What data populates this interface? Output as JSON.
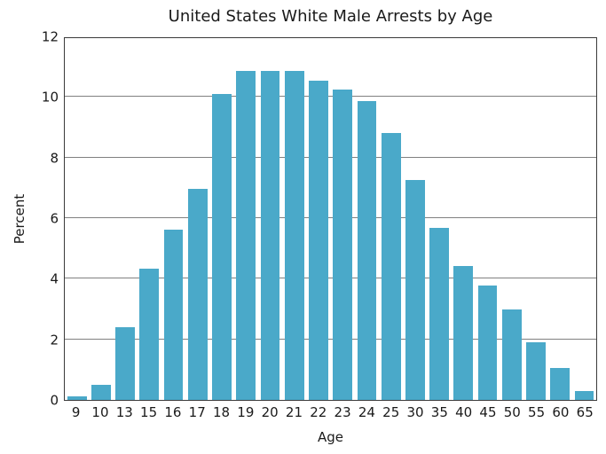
{
  "chart_data": {
    "type": "bar",
    "title": "United States White Male Arrests by Age",
    "xlabel": "Age",
    "ylabel": "Percent",
    "categories": [
      "9",
      "10",
      "13",
      "15",
      "16",
      "17",
      "18",
      "19",
      "20",
      "21",
      "22",
      "23",
      "24",
      "25",
      "30",
      "35",
      "40",
      "45",
      "50",
      "55",
      "60",
      "65"
    ],
    "values": [
      0.12,
      0.5,
      2.4,
      4.35,
      5.65,
      7.0,
      10.15,
      10.9,
      10.9,
      10.9,
      10.6,
      10.3,
      9.9,
      8.85,
      7.3,
      5.7,
      4.45,
      3.8,
      3.0,
      1.9,
      1.05,
      0.3
    ],
    "ylim": [
      0,
      12
    ],
    "yticks": [
      0,
      2,
      4,
      6,
      8,
      10,
      12
    ],
    "grid": true,
    "legend": "none",
    "colors": {
      "bar": "#4aa9c9",
      "gridline": "#808080",
      "spine": "#3a3a3a",
      "text": "#1a1a1a"
    }
  }
}
